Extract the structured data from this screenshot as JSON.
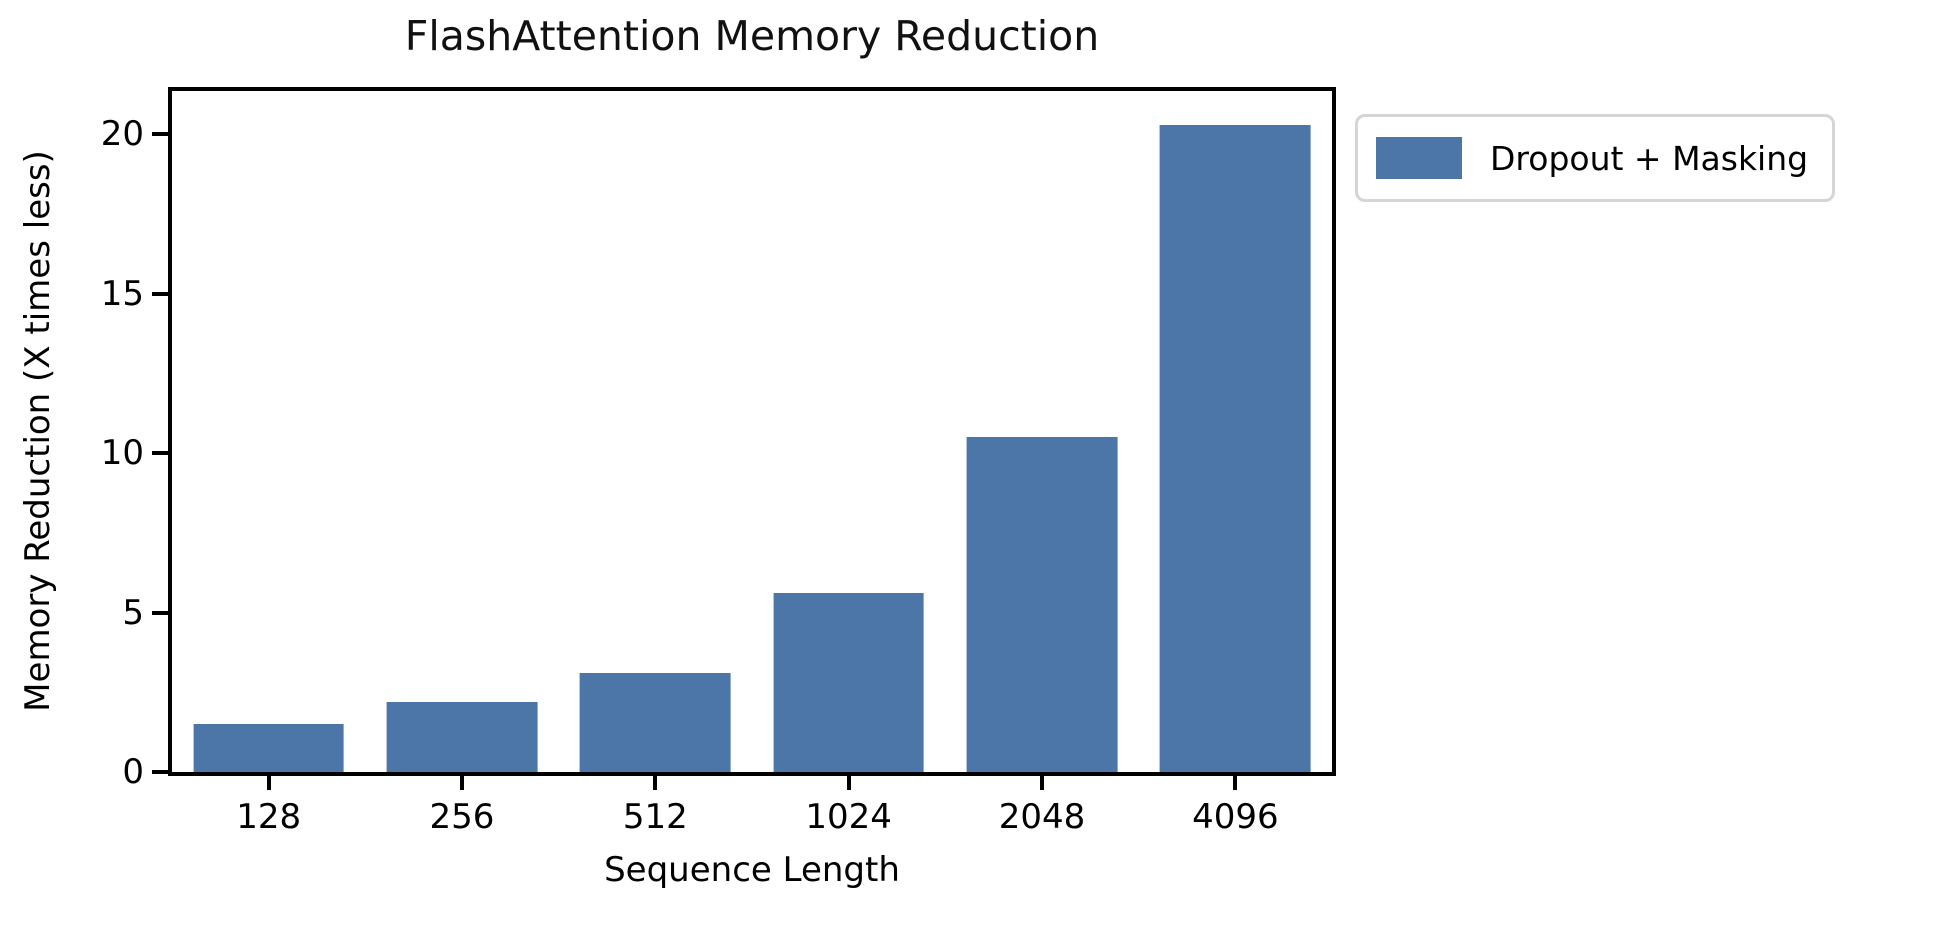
{
  "figure": {
    "background": "#ffffff"
  },
  "chart_data": {
    "type": "bar",
    "title": "FlashAttention Memory Reduction",
    "xlabel": "Sequence Length",
    "ylabel": "Memory Reduction (X times less)",
    "categories": [
      "128",
      "256",
      "512",
      "1024",
      "2048",
      "4096"
    ],
    "series": [
      {
        "name": "Dropout + Masking",
        "values": [
          1.5,
          2.2,
          3.1,
          5.6,
          10.5,
          20.3
        ]
      }
    ],
    "yticks": [
      0,
      5,
      10,
      15,
      20
    ],
    "ylim": [
      0,
      21.35
    ],
    "bar_color": "#4C76A8",
    "grid": false,
    "legend_position": "outside-upper-right"
  }
}
